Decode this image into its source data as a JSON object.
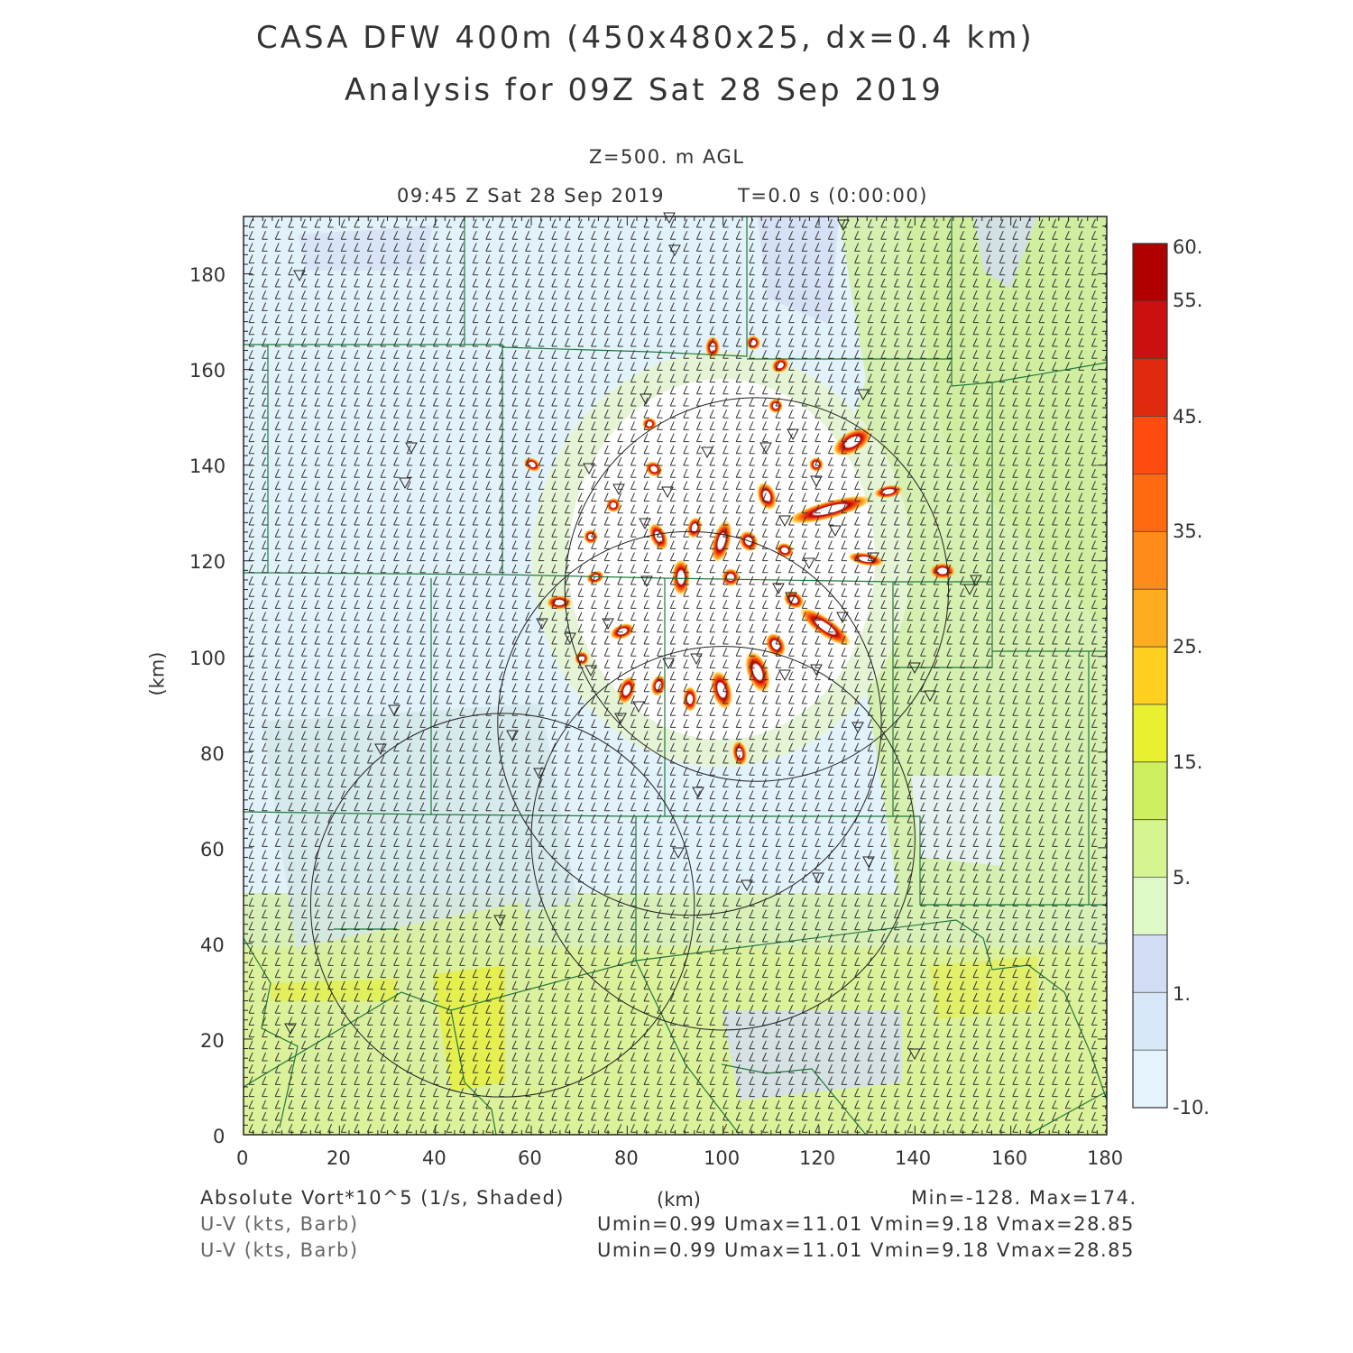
{
  "header": {
    "title": "CASA DFW 400m (450x480x25, dx=0.4 km)",
    "subtitle": "Analysis for 09Z Sat 28 Sep 2019",
    "level": "Z=500. m AGL",
    "valid_time": "09:45 Z Sat 28 Sep 2019",
    "run_time": "T=0.0 s (0:00:00)"
  },
  "axes": {
    "x_unit": "(km)",
    "y_unit": "(km)",
    "x_ticks": [
      "0",
      "20",
      "40",
      "60",
      "80",
      "100",
      "120",
      "140",
      "160",
      "180"
    ],
    "y_ticks": [
      "0",
      "20",
      "40",
      "60",
      "80",
      "100",
      "120",
      "140",
      "160",
      "180"
    ],
    "x_range": [
      0,
      180
    ],
    "y_range": [
      0,
      192
    ]
  },
  "colorbar": {
    "labels": [
      "60.",
      "55.",
      "45.",
      "35.",
      "25.",
      "15.",
      "5.",
      "1.",
      "-10."
    ],
    "colors": [
      "#b00000",
      "#cc1010",
      "#e02a10",
      "#ff4a10",
      "#ff6a10",
      "#ff8c1a",
      "#ffad20",
      "#ffd020",
      "#e8f030",
      "#cef060",
      "#d6f590",
      "#dff8c8",
      "#d3dcf5",
      "#d8e8f8",
      "#e4f3fc"
    ]
  },
  "footer": {
    "field_label": "Absolute Vort*10^5 (1/s, Shaded)",
    "minmax": "Min=-128. Max=174.",
    "barb_label_1": "U-V (kts, Barb)",
    "barb_label_2": "U-V (kts, Barb)",
    "wind_stats_1": "Umin=0.99 Umax=11.01 Vmin=9.18 Vmax=28.85",
    "wind_stats_2": "Umin=0.99 Umax=11.01 Vmin=9.18 Vmax=28.85"
  },
  "radars": [
    {
      "name": "radar-range-ring",
      "cx_km": 107,
      "cy_km": 114,
      "r_km": 40
    },
    {
      "name": "radar-range-ring",
      "cx_km": 93,
      "cy_km": 86,
      "r_km": 40
    },
    {
      "name": "radar-range-ring",
      "cx_km": 100,
      "cy_km": 62,
      "r_km": 40
    },
    {
      "name": "radar-range-ring",
      "cx_km": 54,
      "cy_km": 48,
      "r_km": 40
    }
  ]
}
